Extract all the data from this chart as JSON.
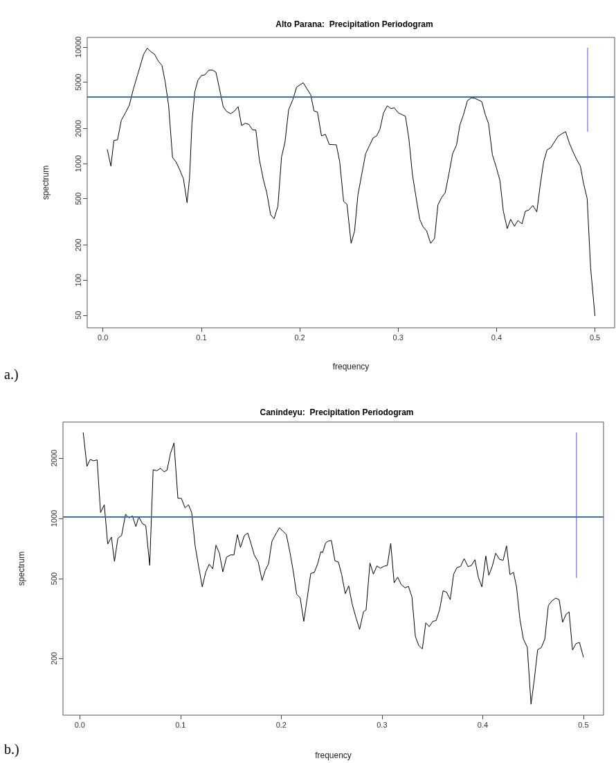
{
  "chart_data": [
    {
      "type": "line",
      "title": "Alto Parana:  Precipitation Periodogram",
      "xlabel": "frequency",
      "ylabel": "spectrum",
      "annotations": [
        "a.)"
      ],
      "log": "y",
      "grid": false,
      "marker": "none",
      "line_style": "solid",
      "xlim": [
        -0.016,
        0.52
      ],
      "xticks": [
        {
          "value": 0,
          "label": "0.0"
        },
        0.1,
        0.2,
        0.3,
        0.4,
        0.5
      ],
      "ylim": [
        39,
        12100
      ],
      "yticks": [
        50,
        100,
        200,
        500,
        1000,
        2000,
        5000,
        10000
      ],
      "ref_lines": [
        {
          "axis": "y",
          "value": 3740,
          "color": "#3f6fb5"
        }
      ],
      "series": [
        {
          "color": "#000000",
          "x": [
            0.0044,
            0.0081,
            0.0111,
            0.0148,
            0.0187,
            0.0229,
            0.0268,
            0.0309,
            0.0351,
            0.0413,
            0.045,
            0.0487,
            0.0522,
            0.0564,
            0.06,
            0.0633,
            0.0667,
            0.0707,
            0.0744,
            0.0783,
            0.0818,
            0.0855,
            0.088,
            0.0905,
            0.0933,
            0.0965,
            0.1,
            0.1037,
            0.1076,
            0.1115,
            0.1148,
            0.118,
            0.1222,
            0.1256,
            0.1298,
            0.1337,
            0.1374,
            0.1409,
            0.1446,
            0.1483,
            0.152,
            0.1554,
            0.1589,
            0.163,
            0.1665,
            0.1704,
            0.1739,
            0.1778,
            0.1815,
            0.185,
            0.1887,
            0.1931,
            0.1968,
            0.2035,
            0.2111,
            0.2145,
            0.218,
            0.2221,
            0.2261,
            0.23,
            0.2372,
            0.2406,
            0.2446,
            0.248,
            0.2522,
            0.2557,
            0.2591,
            0.263,
            0.267,
            0.2704,
            0.2746,
            0.2781,
            0.2815,
            0.285,
            0.2889,
            0.2926,
            0.2961,
            0.3,
            0.3035,
            0.3074,
            0.3109,
            0.3145,
            0.318,
            0.3219,
            0.3254,
            0.3289,
            0.333,
            0.337,
            0.3404,
            0.3443,
            0.3478,
            0.3515,
            0.3554,
            0.3593,
            0.3628,
            0.3665,
            0.3704,
            0.3745,
            0.3778,
            0.3815,
            0.385,
            0.3885,
            0.3919,
            0.3958,
            0.3998,
            0.4035,
            0.4069,
            0.4109,
            0.4143,
            0.4182,
            0.4217,
            0.4259,
            0.4293,
            0.4328,
            0.4369,
            0.4409,
            0.4443,
            0.4478,
            0.4513,
            0.4552,
            0.4587,
            0.4624,
            0.4663,
            0.4702,
            0.4739,
            0.4774,
            0.4813,
            0.4852,
            0.4882,
            0.4921,
            0.4956,
            0.5
          ],
          "values": [
            1320,
            950,
            1580,
            1600,
            2360,
            2730,
            3170,
            4360,
            5740,
            8640,
            9780,
            9130,
            8720,
            7540,
            6950,
            5000,
            3170,
            1130,
            1030,
            875,
            740,
            462,
            755,
            2250,
            4110,
            5190,
            5690,
            5790,
            6340,
            6340,
            6090,
            4570,
            3080,
            2810,
            2680,
            2830,
            3080,
            2120,
            2220,
            2170,
            1950,
            1940,
            1090,
            730,
            562,
            365,
            336,
            431,
            1140,
            1530,
            2900,
            3560,
            4530,
            4940,
            3900,
            2830,
            2770,
            1730,
            1780,
            1460,
            1450,
            1040,
            473,
            448,
            207,
            263,
            537,
            809,
            1220,
            1400,
            1660,
            1730,
            1970,
            2700,
            3130,
            2970,
            3010,
            2730,
            2640,
            2550,
            1640,
            809,
            525,
            333,
            286,
            265,
            207,
            228,
            442,
            513,
            562,
            809,
            1220,
            1440,
            2150,
            2640,
            3470,
            3670,
            3640,
            3520,
            3400,
            2640,
            2200,
            1190,
            927,
            713,
            391,
            277,
            333,
            290,
            325,
            304,
            391,
            399,
            437,
            385,
            645,
            1030,
            1310,
            1370,
            1530,
            1710,
            1800,
            1880,
            1510,
            1280,
            1090,
            950,
            690,
            501,
            128,
            49.5
          ]
        },
        {
          "color": "#4a4aff",
          "x": [
            0.4926,
            0.4926
          ],
          "values": [
            1890,
            9820
          ]
        }
      ]
    },
    {
      "type": "line",
      "title": "Canindeyu:  Precipitation Periodogram",
      "xlabel": "frequency",
      "ylabel": "spectrum",
      "annotations": [
        "b.)"
      ],
      "log": "y",
      "grid": false,
      "marker": "none",
      "line_style": "solid",
      "xlim": [
        -0.0167,
        0.52
      ],
      "xticks": [
        {
          "value": 0,
          "label": "0.0"
        },
        0.1,
        0.2,
        0.3,
        0.4,
        0.5
      ],
      "ylim": [
        104,
        3030
      ],
      "yticks": [
        200,
        500,
        1000,
        2000
      ],
      "ref_lines": [
        {
          "axis": "y",
          "value": 1020,
          "color": "#3f6fb5"
        }
      ],
      "series": [
        {
          "color": "#000000",
          "x": [
            0.0034,
            0.0071,
            0.0103,
            0.0137,
            0.0172,
            0.0206,
            0.0243,
            0.0277,
            0.0314,
            0.0344,
            0.0378,
            0.0415,
            0.0454,
            0.0488,
            0.0522,
            0.0557,
            0.0586,
            0.0621,
            0.0655,
            0.0694,
            0.0728,
            0.0763,
            0.0802,
            0.0836,
            0.0866,
            0.09,
            0.0935,
            0.0974,
            0.1008,
            0.1045,
            0.1079,
            0.1111,
            0.1145,
            0.118,
            0.1216,
            0.1251,
            0.1285,
            0.132,
            0.1352,
            0.1386,
            0.142,
            0.1457,
            0.1496,
            0.153,
            0.1565,
            0.1595,
            0.1634,
            0.1668,
            0.1702,
            0.1732,
            0.1771,
            0.181,
            0.184,
            0.1874,
            0.1908,
            0.1943,
            0.1982,
            0.2016,
            0.205,
            0.2087,
            0.2119,
            0.2153,
            0.2188,
            0.2224,
            0.2259,
            0.2293,
            0.2328,
            0.2362,
            0.2393,
            0.2411,
            0.2441,
            0.2469,
            0.2498,
            0.2533,
            0.2567,
            0.2599,
            0.2636,
            0.267,
            0.2704,
            0.2743,
            0.2778,
            0.2817,
            0.2842,
            0.2881,
            0.2915,
            0.295,
            0.2984,
            0.3018,
            0.3053,
            0.3087,
            0.3121,
            0.3156,
            0.319,
            0.3229,
            0.3263,
            0.3298,
            0.3332,
            0.3367,
            0.3401,
            0.3435,
            0.347,
            0.3504,
            0.3538,
            0.3573,
            0.3607,
            0.3641,
            0.3678,
            0.3712,
            0.3744,
            0.3781,
            0.3816,
            0.3855,
            0.3889,
            0.3923,
            0.3958,
            0.3992,
            0.4031,
            0.4061,
            0.4095,
            0.4129,
            0.4168,
            0.4203,
            0.4237,
            0.4271,
            0.4306,
            0.4336,
            0.437,
            0.4404,
            0.4443,
            0.448,
            0.4512,
            0.4546,
            0.4581,
            0.4617,
            0.4652,
            0.4686,
            0.4725,
            0.4759,
            0.4794,
            0.4828,
            0.4858,
            0.4892,
            0.4927,
            0.4961,
            0.5
          ],
          "values": [
            2680,
            1820,
            1970,
            1940,
            1960,
            1070,
            1170,
            745,
            807,
            610,
            796,
            822,
            1050,
            1005,
            1030,
            910,
            1020,
            942,
            922,
            583,
            1750,
            1730,
            1780,
            1710,
            1740,
            2110,
            2380,
            1260,
            1260,
            1130,
            1170,
            1070,
            731,
            575,
            455,
            541,
            591,
            560,
            735,
            670,
            541,
            640,
            657,
            657,
            830,
            716,
            822,
            845,
            742,
            657,
            607,
            490,
            548,
            594,
            769,
            830,
            898,
            863,
            833,
            675,
            546,
            418,
            401,
            306,
            403,
            531,
            537,
            594,
            682,
            675,
            755,
            771,
            776,
            614,
            606,
            527,
            421,
            460,
            374,
            318,
            279,
            342,
            349,
            598,
            527,
            579,
            564,
            576,
            582,
            751,
            477,
            509,
            468,
            450,
            458,
            404,
            257,
            231,
            223,
            301,
            288,
            306,
            309,
            351,
            435,
            428,
            393,
            527,
            567,
            576,
            630,
            574,
            583,
            622,
            506,
            455,
            649,
            520,
            576,
            670,
            624,
            618,
            729,
            524,
            538,
            455,
            313,
            250,
            227,
            118,
            156,
            221,
            226,
            250,
            367,
            387,
            400,
            393,
            303,
            332,
            341,
            220,
            237,
            240,
            203
          ]
        },
        {
          "color": "#4a4aff",
          "x": [
            0.4931,
            0.4931
          ],
          "values": [
            506,
            2680
          ]
        }
      ]
    }
  ]
}
